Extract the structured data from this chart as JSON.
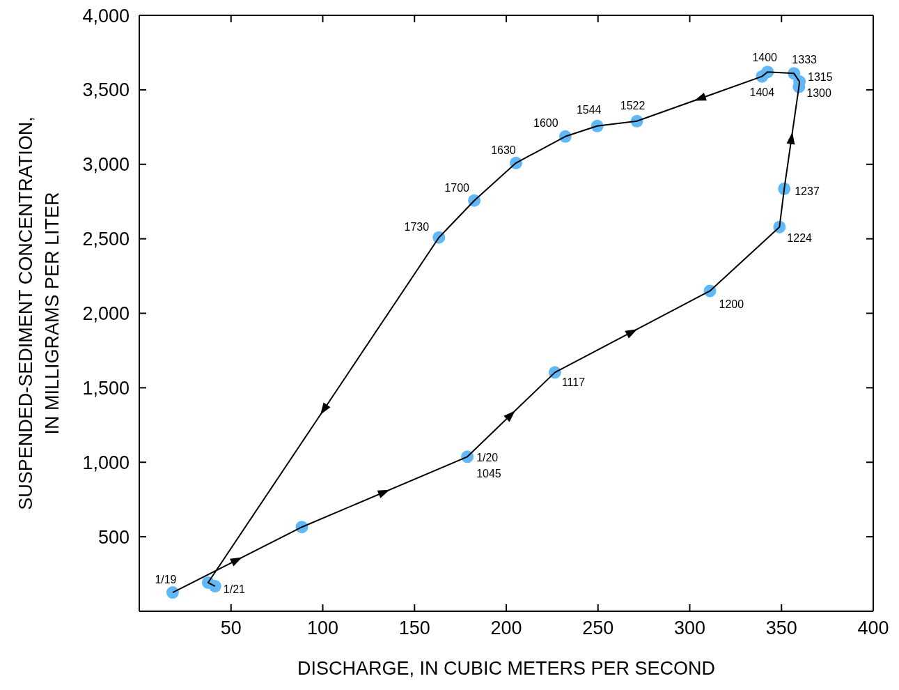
{
  "chart_data": {
    "type": "line",
    "xlabel": "DISCHARGE, IN CUBIC METERS PER SECOND",
    "ylabel": "SUSPENDED-SEDIMENT CONCENTRATION,\nIN MILLIGRAMS PER LITER",
    "xlim": [
      0,
      400
    ],
    "ylim": [
      0,
      4000
    ],
    "xticks": [
      50,
      100,
      150,
      200,
      250,
      300,
      350,
      400
    ],
    "yticks": [
      {
        "value": 500,
        "label": "500"
      },
      {
        "value": 1000,
        "label": "1,000"
      },
      {
        "value": 1500,
        "label": "1,500"
      },
      {
        "value": 2000,
        "label": "2,000"
      },
      {
        "value": 2500,
        "label": "2,500"
      },
      {
        "value": 3000,
        "label": "3,000"
      },
      {
        "value": 3500,
        "label": "3,500"
      },
      {
        "value": 4000,
        "label": "4,000"
      }
    ],
    "series": [
      {
        "color": "#000000",
        "marker": "none",
        "x": [
          18.2,
          88.6,
          178.8,
          226.5,
          311,
          348.9,
          351.5,
          359.5,
          359.8,
          356.8,
          342.4,
          339.4,
          271.2,
          249.6,
          232.2,
          205.3,
          182.6,
          163.3,
          37.5,
          41.3
        ],
        "values": [
          126,
          565,
          1037,
          1603,
          2150,
          2579,
          2836,
          3520,
          3555,
          3610,
          3620,
          3590,
          3290,
          3257,
          3187,
          3009,
          2757,
          2509,
          192,
          168
        ]
      },
      {
        "type": "scatter",
        "color": "#61b8f7",
        "marker": "circle",
        "x": [
          18.2,
          88.6,
          178.8,
          226.5,
          311,
          348.9,
          351.5,
          359.5,
          359.8,
          356.8,
          342.4,
          339.4,
          271.2,
          249.6,
          232.2,
          205.3,
          182.6,
          163.3,
          37.5,
          41.3
        ],
        "values": [
          126,
          565,
          1037,
          1603,
          2150,
          2579,
          2836,
          3520,
          3555,
          3610,
          3620,
          3590,
          3290,
          3257,
          3187,
          3009,
          2757,
          2509,
          192,
          168
        ]
      }
    ],
    "annotations": [
      {
        "text": "1/19",
        "x": 18.2,
        "y": 126
      },
      {
        "text": "1/21",
        "x": 41.3,
        "y": 168
      },
      {
        "text": "1/20\n1045",
        "x": 178.8,
        "y": 1037
      },
      {
        "text": "1117",
        "x": 226.5,
        "y": 1603
      },
      {
        "text": "1200",
        "x": 311,
        "y": 2150
      },
      {
        "text": "1224",
        "x": 348.9,
        "y": 2579
      },
      {
        "text": "1237",
        "x": 351.5,
        "y": 2836
      },
      {
        "text": "1300",
        "x": 359.5,
        "y": 3520
      },
      {
        "text": "1315",
        "x": 359.8,
        "y": 3555
      },
      {
        "text": "1333",
        "x": 356.8,
        "y": 3610
      },
      {
        "text": "1400",
        "x": 342.4,
        "y": 3620
      },
      {
        "text": "1404",
        "x": 339.4,
        "y": 3590
      },
      {
        "text": "1522",
        "x": 271.2,
        "y": 3290
      },
      {
        "text": "1544",
        "x": 249.6,
        "y": 3257
      },
      {
        "text": "1600",
        "x": 232.2,
        "y": 3187
      },
      {
        "text": "1630",
        "x": 205.3,
        "y": 3009
      },
      {
        "text": "1700",
        "x": 182.6,
        "y": 2757
      },
      {
        "text": "1730",
        "x": 163.3,
        "y": 2509
      }
    ]
  }
}
